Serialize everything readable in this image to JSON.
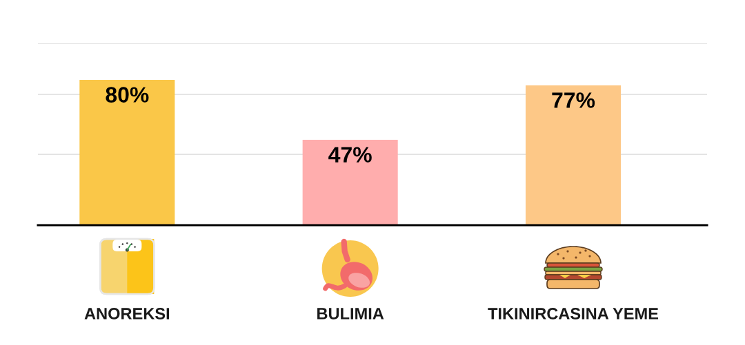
{
  "chart_data": {
    "type": "bar",
    "categories": [
      "ANOREKSI",
      "BULIMIA",
      "TIKINIRCASINA YEME"
    ],
    "values": [
      80,
      47,
      77
    ],
    "value_labels": [
      "80%",
      "47%",
      "77%"
    ],
    "colors": [
      "#fac748",
      "#ffadad",
      "#fdc887"
    ],
    "ylim": [
      0,
      100
    ],
    "yticks": [
      {
        "value": 39,
        "label": null
      },
      {
        "value": 72,
        "label": null
      },
      {
        "value": 100,
        "label": null
      }
    ],
    "grid": "y",
    "tick_labels": "x"
  }
}
